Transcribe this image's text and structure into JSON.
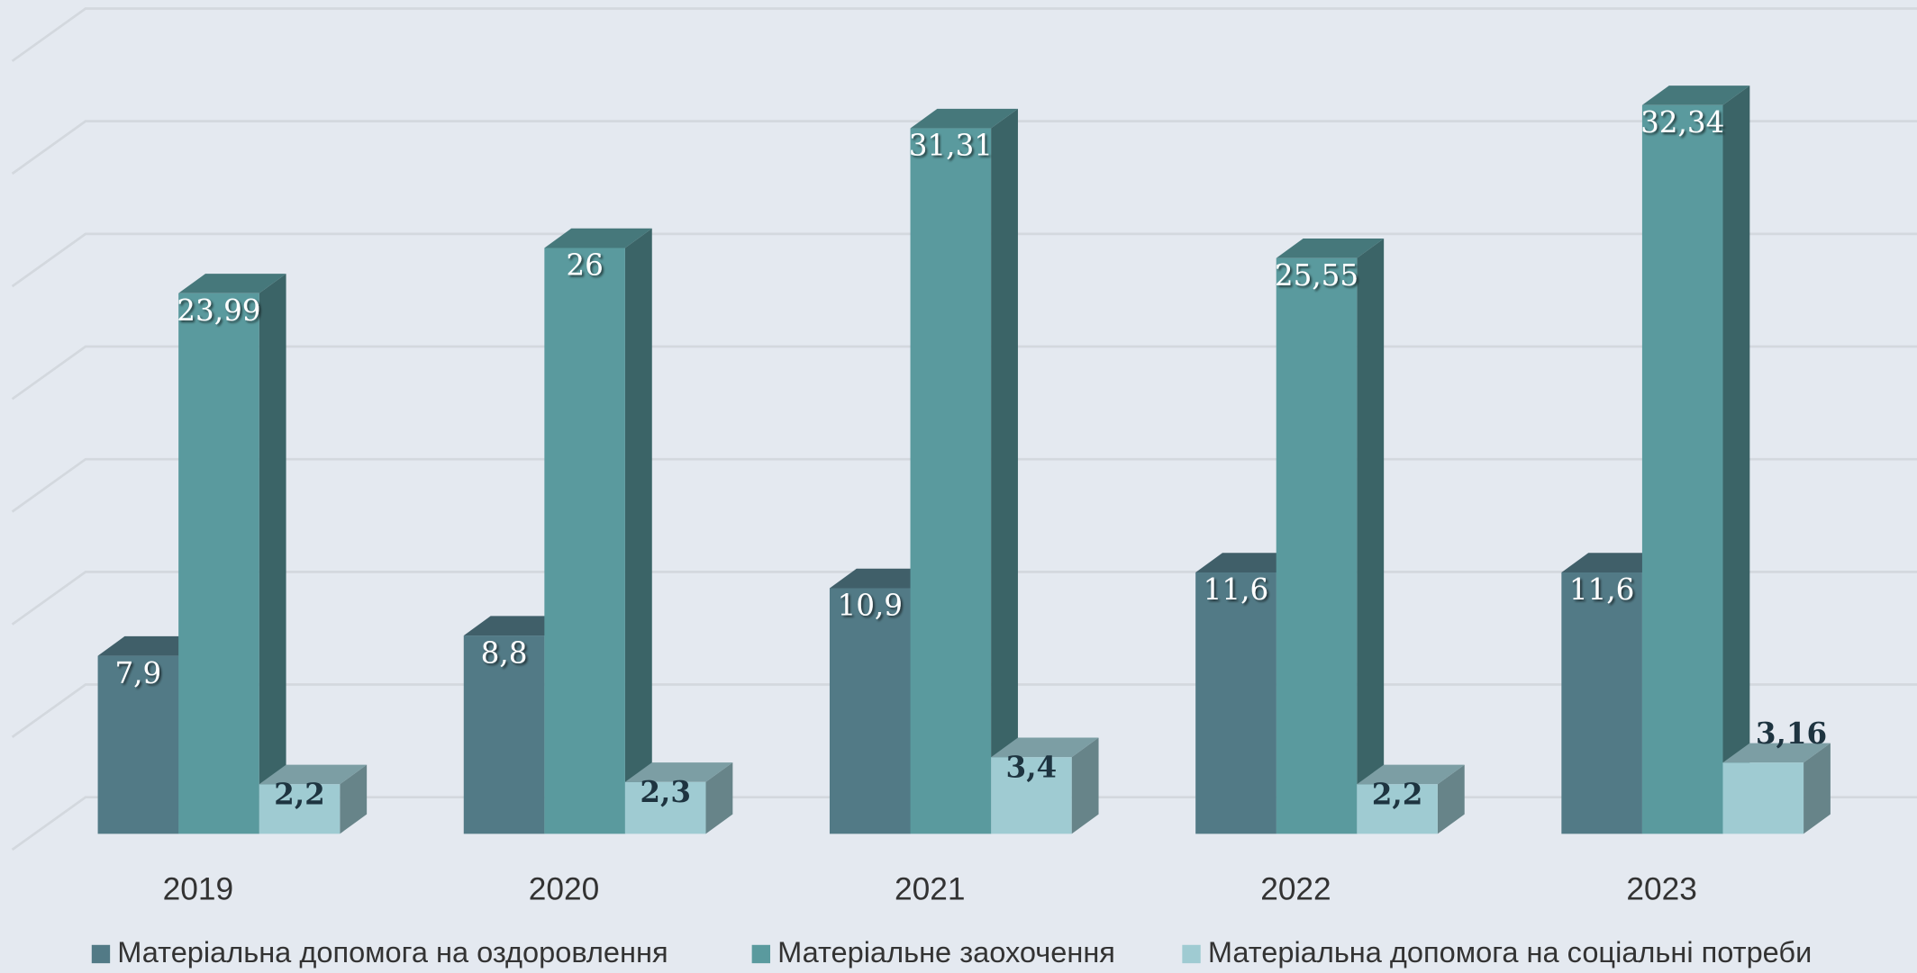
{
  "chart_data": {
    "type": "bar3d",
    "categories": [
      "2019",
      "2020",
      "2021",
      "2022",
      "2023"
    ],
    "series": [
      {
        "name": "Матеріальна допомога на оздоровлення",
        "color": "#527a86",
        "values": [
          7.9,
          8.8,
          10.9,
          11.6,
          11.6
        ],
        "value_labels": [
          "7,9",
          "8,8",
          "10,9",
          "11,6",
          "11,6"
        ]
      },
      {
        "name": "Матеріальне заохочення",
        "color": "#5a9a9e",
        "values": [
          23.99,
          26,
          31.31,
          25.55,
          32.34
        ],
        "value_labels": [
          "23,99",
          "26",
          "31,31",
          "25,55",
          "32,34"
        ]
      },
      {
        "name": "Матеріальна допомога на соціальні потреби",
        "color": "#9fcbd2",
        "values": [
          2.2,
          2.3,
          3.4,
          2.2,
          3.16
        ],
        "value_labels": [
          "2,2",
          "2,3",
          "3,4",
          "2,2",
          "3,16"
        ]
      }
    ],
    "ylim": [
      0,
      35
    ],
    "yticks": [
      0,
      5,
      10,
      15,
      20,
      25,
      30,
      35
    ],
    "grid": true,
    "legend": "bottom"
  }
}
